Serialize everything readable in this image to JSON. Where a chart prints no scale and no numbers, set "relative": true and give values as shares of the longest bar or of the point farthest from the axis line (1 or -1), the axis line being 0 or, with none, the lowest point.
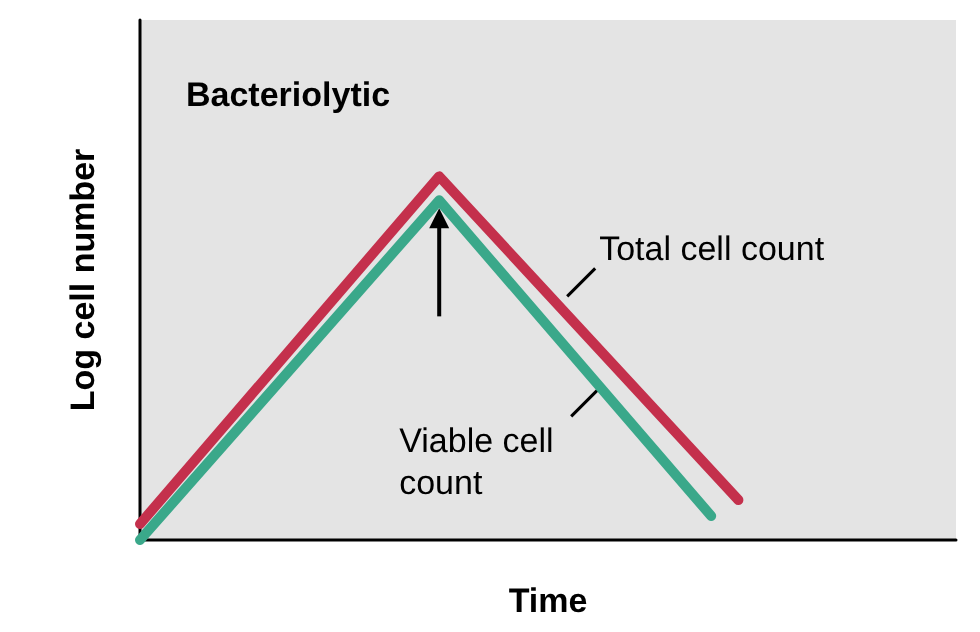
{
  "chart_data": {
    "type": "line",
    "title": "Bacteriolytic",
    "xlabel": "Time",
    "ylabel": "Log cell number",
    "relative": true,
    "legend": false,
    "grid": false,
    "marker": "none",
    "line_style": "solid",
    "categories": [
      null,
      null,
      null,
      null,
      null,
      null,
      null,
      null,
      null,
      null,
      null,
      null,
      null,
      null,
      null,
      null,
      null,
      null,
      null,
      null,
      null,
      null,
      null,
      null,
      null,
      null,
      null,
      null,
      null,
      null,
      null
    ],
    "series": [
      {
        "name": "Total cell count",
        "color": "#c4304c",
        "values": [
          0.044,
          null,
          null,
          null,
          null,
          null,
          null,
          null,
          null,
          null,
          null,
          1,
          null,
          null,
          null,
          null,
          null,
          null,
          null,
          null,
          null,
          null,
          0.11,
          null,
          null,
          null,
          null,
          null,
          null,
          null,
          null
        ]
      },
      {
        "name": "Viable cell count",
        "color": "#3aa88a",
        "values": [
          0,
          null,
          null,
          null,
          null,
          null,
          null,
          null,
          null,
          null,
          null,
          0.934,
          null,
          null,
          null,
          null,
          null,
          null,
          null,
          null,
          null,
          0.066,
          null,
          null,
          null,
          null,
          null,
          null,
          null,
          null,
          null
        ]
      }
    ]
  }
}
